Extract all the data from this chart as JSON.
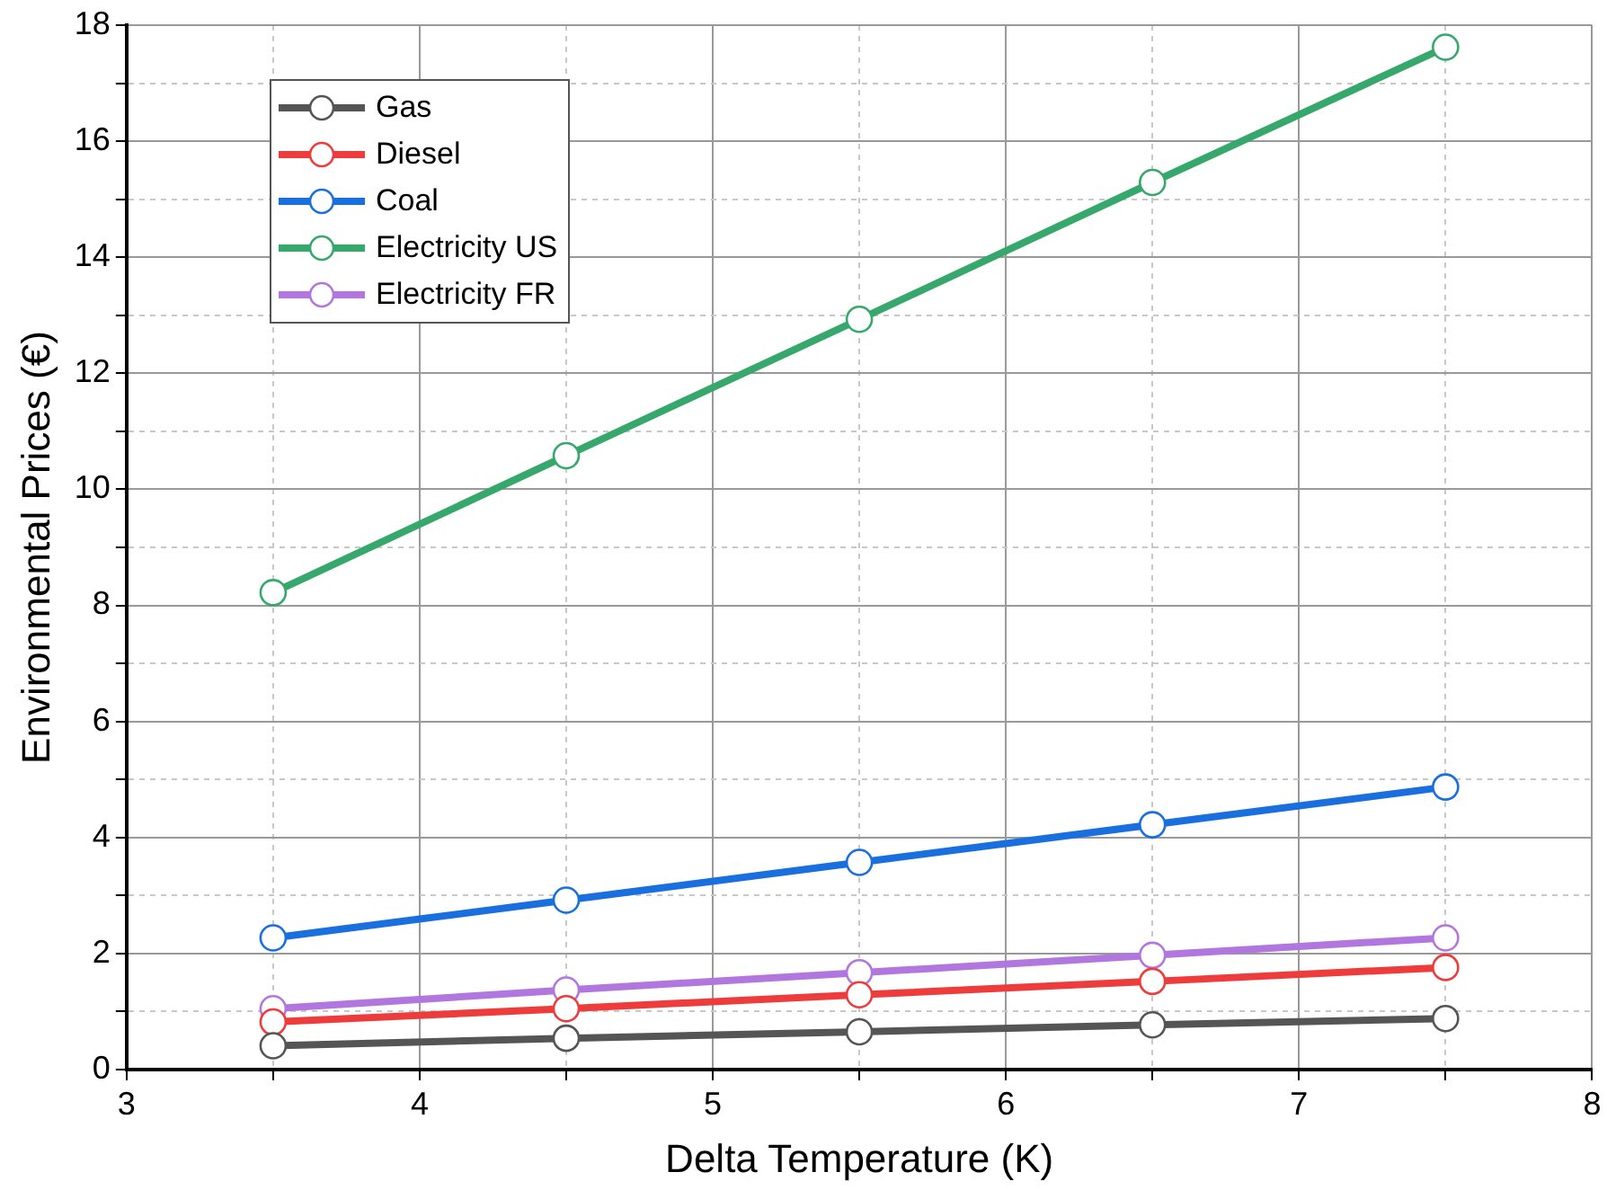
{
  "chart_data": {
    "type": "line",
    "xlabel": "Delta Temperature (K)",
    "ylabel": "Environmental Prices (€)",
    "xlim": [
      3,
      8
    ],
    "xticks": [
      3,
      {
        "value": 3.5,
        "label": null
      },
      4,
      {
        "value": 4.5,
        "label": null
      },
      5,
      {
        "value": 5.5,
        "label": null
      },
      6,
      {
        "value": 6.5,
        "label": null
      },
      7,
      {
        "value": 7.5,
        "label": null
      },
      8
    ],
    "ylim": [
      0,
      18
    ],
    "yticks": [
      0,
      {
        "value": 1,
        "label": null
      },
      2,
      {
        "value": 3,
        "label": null
      },
      4,
      {
        "value": 5,
        "label": null
      },
      6,
      {
        "value": 7,
        "label": null
      },
      8,
      {
        "value": 9,
        "label": null
      },
      10,
      {
        "value": 11,
        "label": null
      },
      12,
      {
        "value": 13,
        "label": null
      },
      14,
      {
        "value": 15,
        "label": null
      },
      16,
      {
        "value": 17,
        "label": null
      },
      18
    ],
    "x": [
      3.5,
      4.5,
      5.5,
      6.5,
      7.5
    ],
    "grid": true,
    "legend": "top left",
    "marker": "circle",
    "line_style": "solid",
    "series": [
      {
        "name": "Gas",
        "color": "#555555",
        "values": [
          0.41,
          0.54,
          0.65,
          0.77,
          0.88
        ]
      },
      {
        "name": "Diesel",
        "color": "#ee3b3b",
        "values": [
          0.82,
          1.05,
          1.29,
          1.52,
          1.76
        ]
      },
      {
        "name": "Coal",
        "color": "#1a6fdf",
        "values": [
          2.27,
          2.92,
          3.57,
          4.22,
          4.87
        ]
      },
      {
        "name": "Electricity US",
        "color": "#37a86b",
        "values": [
          8.22,
          10.58,
          12.93,
          15.29,
          17.62
        ]
      },
      {
        "name": "Electricity FR",
        "color": "#b177de",
        "values": [
          1.05,
          1.37,
          1.67,
          1.97,
          2.27
        ]
      }
    ]
  }
}
